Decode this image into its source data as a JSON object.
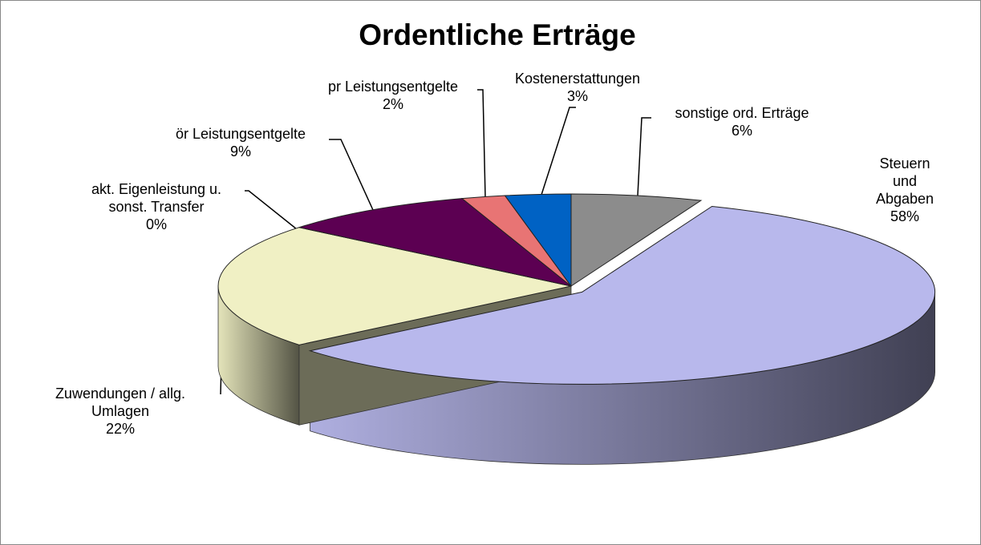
{
  "chart_data": {
    "type": "pie",
    "title": "Ordentliche Erträge",
    "categories": [
      "sonstige ord. Erträge",
      "Steuern und\nAbgaben",
      "Zuwendungen / allg.\nUmlagen",
      "akt. Eigenleistung u.\nsonst. Transfer",
      "ör Leistungsentgelte",
      "pr Leistungsentgelte",
      "Kostenerstattungen"
    ],
    "values": [
      6,
      58,
      22,
      0,
      9,
      2,
      3
    ],
    "value_labels": [
      "6%",
      "58%",
      "22%",
      "0%",
      "9%",
      "2%",
      "3%"
    ],
    "colors": [
      "#8c8c8c",
      "#b8b8ec",
      "#f0f0c4",
      "#3a3a3a",
      "#5c0052",
      "#e87474",
      "#0062c4"
    ]
  }
}
